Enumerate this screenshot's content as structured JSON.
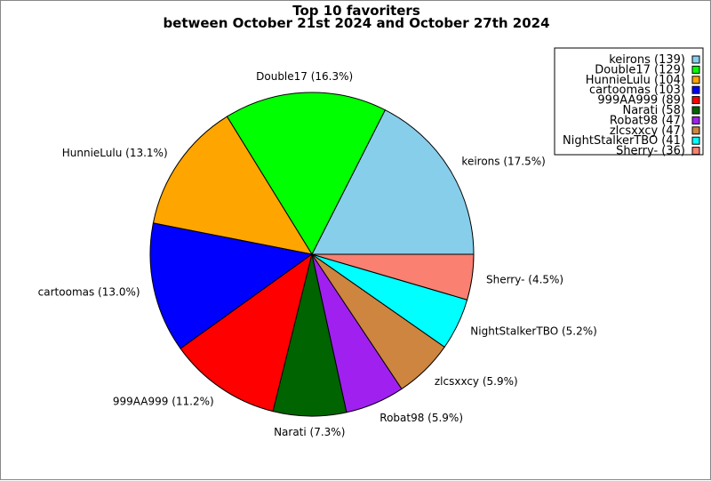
{
  "chart_data": {
    "type": "pie",
    "title": "Top 10 favoriters",
    "subtitle": "between October 21st 2024 and October 27th 2024",
    "legend_placement": "top-right",
    "slices": [
      {
        "name": "keirons",
        "value": 139,
        "percent": "17.5%",
        "color": "#87ceeb"
      },
      {
        "name": "Double17",
        "value": 129,
        "percent": "16.3%",
        "color": "#00ff00"
      },
      {
        "name": "HunnieLulu",
        "value": 104,
        "percent": "13.1%",
        "color": "#ffa500"
      },
      {
        "name": "cartoomas",
        "value": 103,
        "percent": "13.0%",
        "color": "#0000ff"
      },
      {
        "name": "999AA999",
        "value": 89,
        "percent": "11.2%",
        "color": "#ff0000"
      },
      {
        "name": "Narati",
        "value": 58,
        "percent": "7.3%",
        "color": "#006400"
      },
      {
        "name": "Robat98",
        "value": 47,
        "percent": "5.9%",
        "color": "#a020f0"
      },
      {
        "name": "zlcsxxcy",
        "value": 47,
        "percent": "5.9%",
        "color": "#cd853f"
      },
      {
        "name": "NightStalkerTBO",
        "value": 41,
        "percent": "5.2%",
        "color": "#00ffff"
      },
      {
        "name": "Sherry-",
        "value": 36,
        "percent": "4.5%",
        "color": "#fa8072"
      }
    ]
  }
}
